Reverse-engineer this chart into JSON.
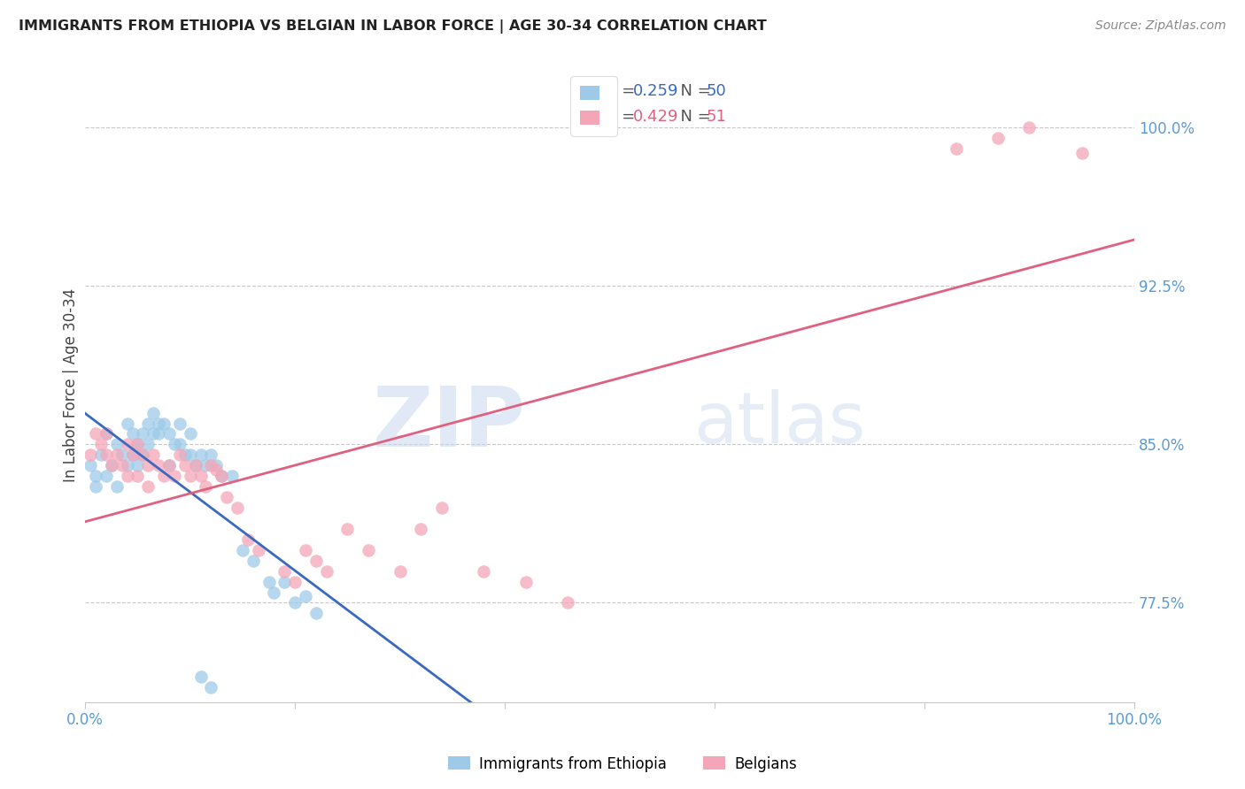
{
  "title": "IMMIGRANTS FROM ETHIOPIA VS BELGIAN IN LABOR FORCE | AGE 30-34 CORRELATION CHART",
  "source": "Source: ZipAtlas.com",
  "ylabel": "In Labor Force | Age 30-34",
  "xlim": [
    0.0,
    1.0
  ],
  "ylim": [
    0.728,
    1.028
  ],
  "y_ticks": [
    0.775,
    0.85,
    0.925,
    1.0
  ],
  "y_tick_labels": [
    "77.5%",
    "85.0%",
    "92.5%",
    "100.0%"
  ],
  "x_ticks": [
    0.0,
    0.2,
    0.4,
    0.6,
    0.8,
    1.0
  ],
  "x_tick_labels": [
    "0.0%",
    "",
    "",
    "",
    "",
    "100.0%"
  ],
  "legend_label1": "Immigrants from Ethiopia",
  "legend_label2": "Belgians",
  "R1": "0.259",
  "N1": "50",
  "R2": "0.429",
  "N2": "51",
  "color_blue": "#9ecae8",
  "color_pink": "#f4a6b8",
  "line_color_blue": "#3a6abf",
  "line_color_pink": "#e06080",
  "watermark_zip": "ZIP",
  "watermark_atlas": "atlas",
  "blue_x": [
    0.005,
    0.01,
    0.01,
    0.015,
    0.02,
    0.02,
    0.025,
    0.03,
    0.03,
    0.035,
    0.04,
    0.04,
    0.045,
    0.045,
    0.05,
    0.05,
    0.055,
    0.055,
    0.06,
    0.06,
    0.065,
    0.065,
    0.07,
    0.07,
    0.075,
    0.08,
    0.08,
    0.085,
    0.09,
    0.09,
    0.095,
    0.1,
    0.1,
    0.105,
    0.11,
    0.115,
    0.12,
    0.125,
    0.13,
    0.14,
    0.15,
    0.16,
    0.175,
    0.18,
    0.19,
    0.2,
    0.21,
    0.22,
    0.11,
    0.12
  ],
  "blue_y": [
    0.84,
    0.835,
    0.83,
    0.845,
    0.835,
    0.855,
    0.84,
    0.83,
    0.85,
    0.845,
    0.84,
    0.86,
    0.845,
    0.855,
    0.85,
    0.84,
    0.855,
    0.845,
    0.86,
    0.85,
    0.855,
    0.865,
    0.86,
    0.855,
    0.86,
    0.855,
    0.84,
    0.85,
    0.86,
    0.85,
    0.845,
    0.855,
    0.845,
    0.84,
    0.845,
    0.84,
    0.845,
    0.84,
    0.835,
    0.835,
    0.8,
    0.795,
    0.785,
    0.78,
    0.785,
    0.775,
    0.778,
    0.77,
    0.74,
    0.735
  ],
  "pink_x": [
    0.005,
    0.01,
    0.015,
    0.02,
    0.02,
    0.025,
    0.03,
    0.035,
    0.04,
    0.04,
    0.045,
    0.05,
    0.05,
    0.055,
    0.06,
    0.06,
    0.065,
    0.07,
    0.075,
    0.08,
    0.085,
    0.09,
    0.095,
    0.1,
    0.105,
    0.11,
    0.115,
    0.12,
    0.125,
    0.13,
    0.135,
    0.145,
    0.155,
    0.165,
    0.19,
    0.2,
    0.21,
    0.22,
    0.23,
    0.25,
    0.27,
    0.3,
    0.32,
    0.34,
    0.38,
    0.42,
    0.46,
    0.83,
    0.87,
    0.9,
    0.95
  ],
  "pink_y": [
    0.845,
    0.855,
    0.85,
    0.855,
    0.845,
    0.84,
    0.845,
    0.84,
    0.85,
    0.835,
    0.845,
    0.85,
    0.835,
    0.845,
    0.84,
    0.83,
    0.845,
    0.84,
    0.835,
    0.84,
    0.835,
    0.845,
    0.84,
    0.835,
    0.84,
    0.835,
    0.83,
    0.84,
    0.838,
    0.835,
    0.825,
    0.82,
    0.805,
    0.8,
    0.79,
    0.785,
    0.8,
    0.795,
    0.79,
    0.81,
    0.8,
    0.79,
    0.81,
    0.82,
    0.79,
    0.785,
    0.775,
    0.99,
    0.995,
    1.0,
    0.988
  ]
}
